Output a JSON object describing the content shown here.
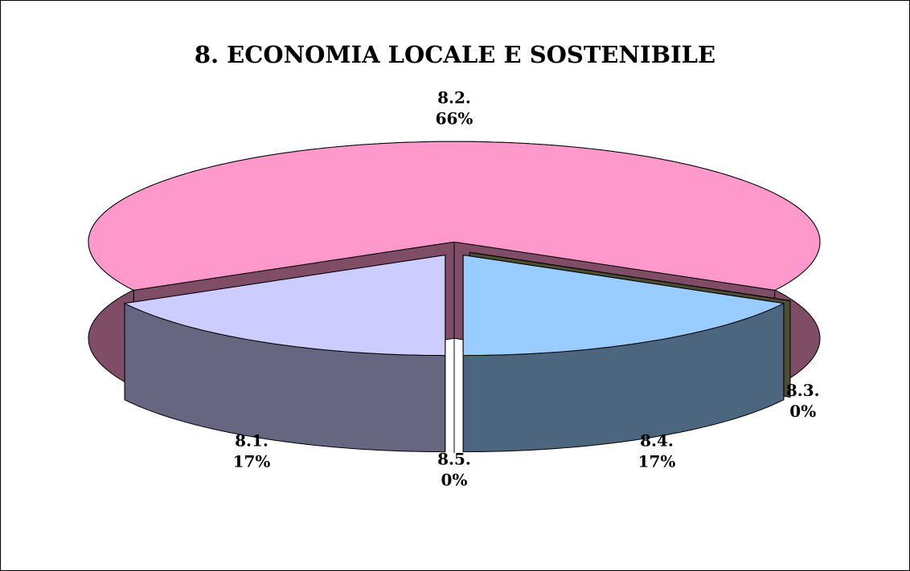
{
  "chart_data": {
    "type": "pie3d",
    "title": "8. ECONOMIA LOCALE E SOSTENIBILE",
    "categories": [
      "8.1.",
      "8.2.",
      "8.3.",
      "8.4.",
      "8.5."
    ],
    "values": [
      17,
      66,
      0,
      17,
      0
    ],
    "value_labels": [
      "17%",
      "66%",
      "0%",
      "17%",
      "0%"
    ],
    "colors": [
      "#ccccff",
      "#ff99cc",
      "#999966",
      "#99ccff",
      "#669966"
    ]
  }
}
